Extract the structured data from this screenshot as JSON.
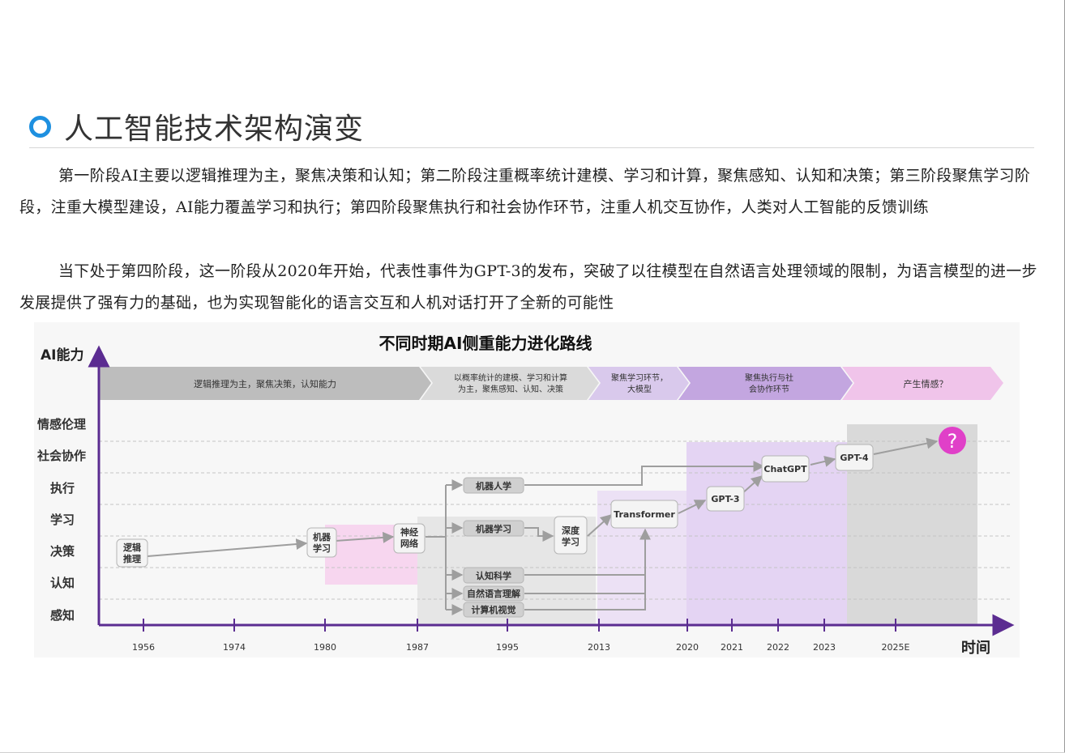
{
  "heading": {
    "title": "人工智能技术架构演变"
  },
  "paragraphs": [
    "第一阶段AI主要以逻辑推理为主，聚焦决策和认知；第二阶段注重概率统计建模、学习和计算，聚焦感知、认知和决策；第三阶段聚焦学习阶段，注重大模型建设，AI能力覆盖学习和执行；第四阶段聚焦执行和社会协作环节，注重人机交互协作，人类对人工智能的反馈训练",
    "当下处于第四阶段，这一阶段从2020年开始，代表性事件为GPT-3的发布，突破了以往模型在自然语言处理领域的限制，为语言模型的进一步发展提供了强有力的基础，也为实现智能化的语言交互和人机对话打开了全新的可能性"
  ],
  "diagram": {
    "title": "不同时期AI侧重能力进化路线",
    "y_axis_label": "AI能力",
    "x_axis_label": "时间",
    "y_levels": [
      "情感伦理",
      "社会协作",
      "执行",
      "学习",
      "决策",
      "认知",
      "感知"
    ],
    "x_ticks": [
      "1956",
      "1974",
      "1980",
      "1987",
      "1995",
      "2013",
      "2020",
      "2021",
      "2022",
      "2023",
      "2025E"
    ],
    "stages": [
      {
        "text": "逻辑推理为主，聚焦决策，认知能力",
        "color": "#bdbdbd"
      },
      {
        "text": "以概率统计的建模、学习和计算为主，聚焦感知、认知、决策",
        "color": "#dadada"
      },
      {
        "text": "聚焦学习环节，大模型",
        "color": "#d9c9ec"
      },
      {
        "text": "聚焦执行与社会协作环节",
        "color": "#c3a6e0"
      },
      {
        "text": "产生情感？",
        "color": "#f0c4ea"
      }
    ],
    "nodes": {
      "logic": "逻辑推理",
      "ml": "机器学习",
      "nn": "神经网络",
      "robotics": "机器人学",
      "ml2": "机器学习",
      "dl": "深度学习",
      "cog": "认知科学",
      "nlp": "自然语言理解",
      "cv": "计算机视觉",
      "transformer": "Transformer",
      "gpt3": "GPT-3",
      "chatgpt": "ChatGPT",
      "gpt4": "GPT-4",
      "future": "?"
    },
    "colors": {
      "axis": "#5b2c91",
      "arrow": "#9e9e9e",
      "future": "#e040c8"
    }
  }
}
